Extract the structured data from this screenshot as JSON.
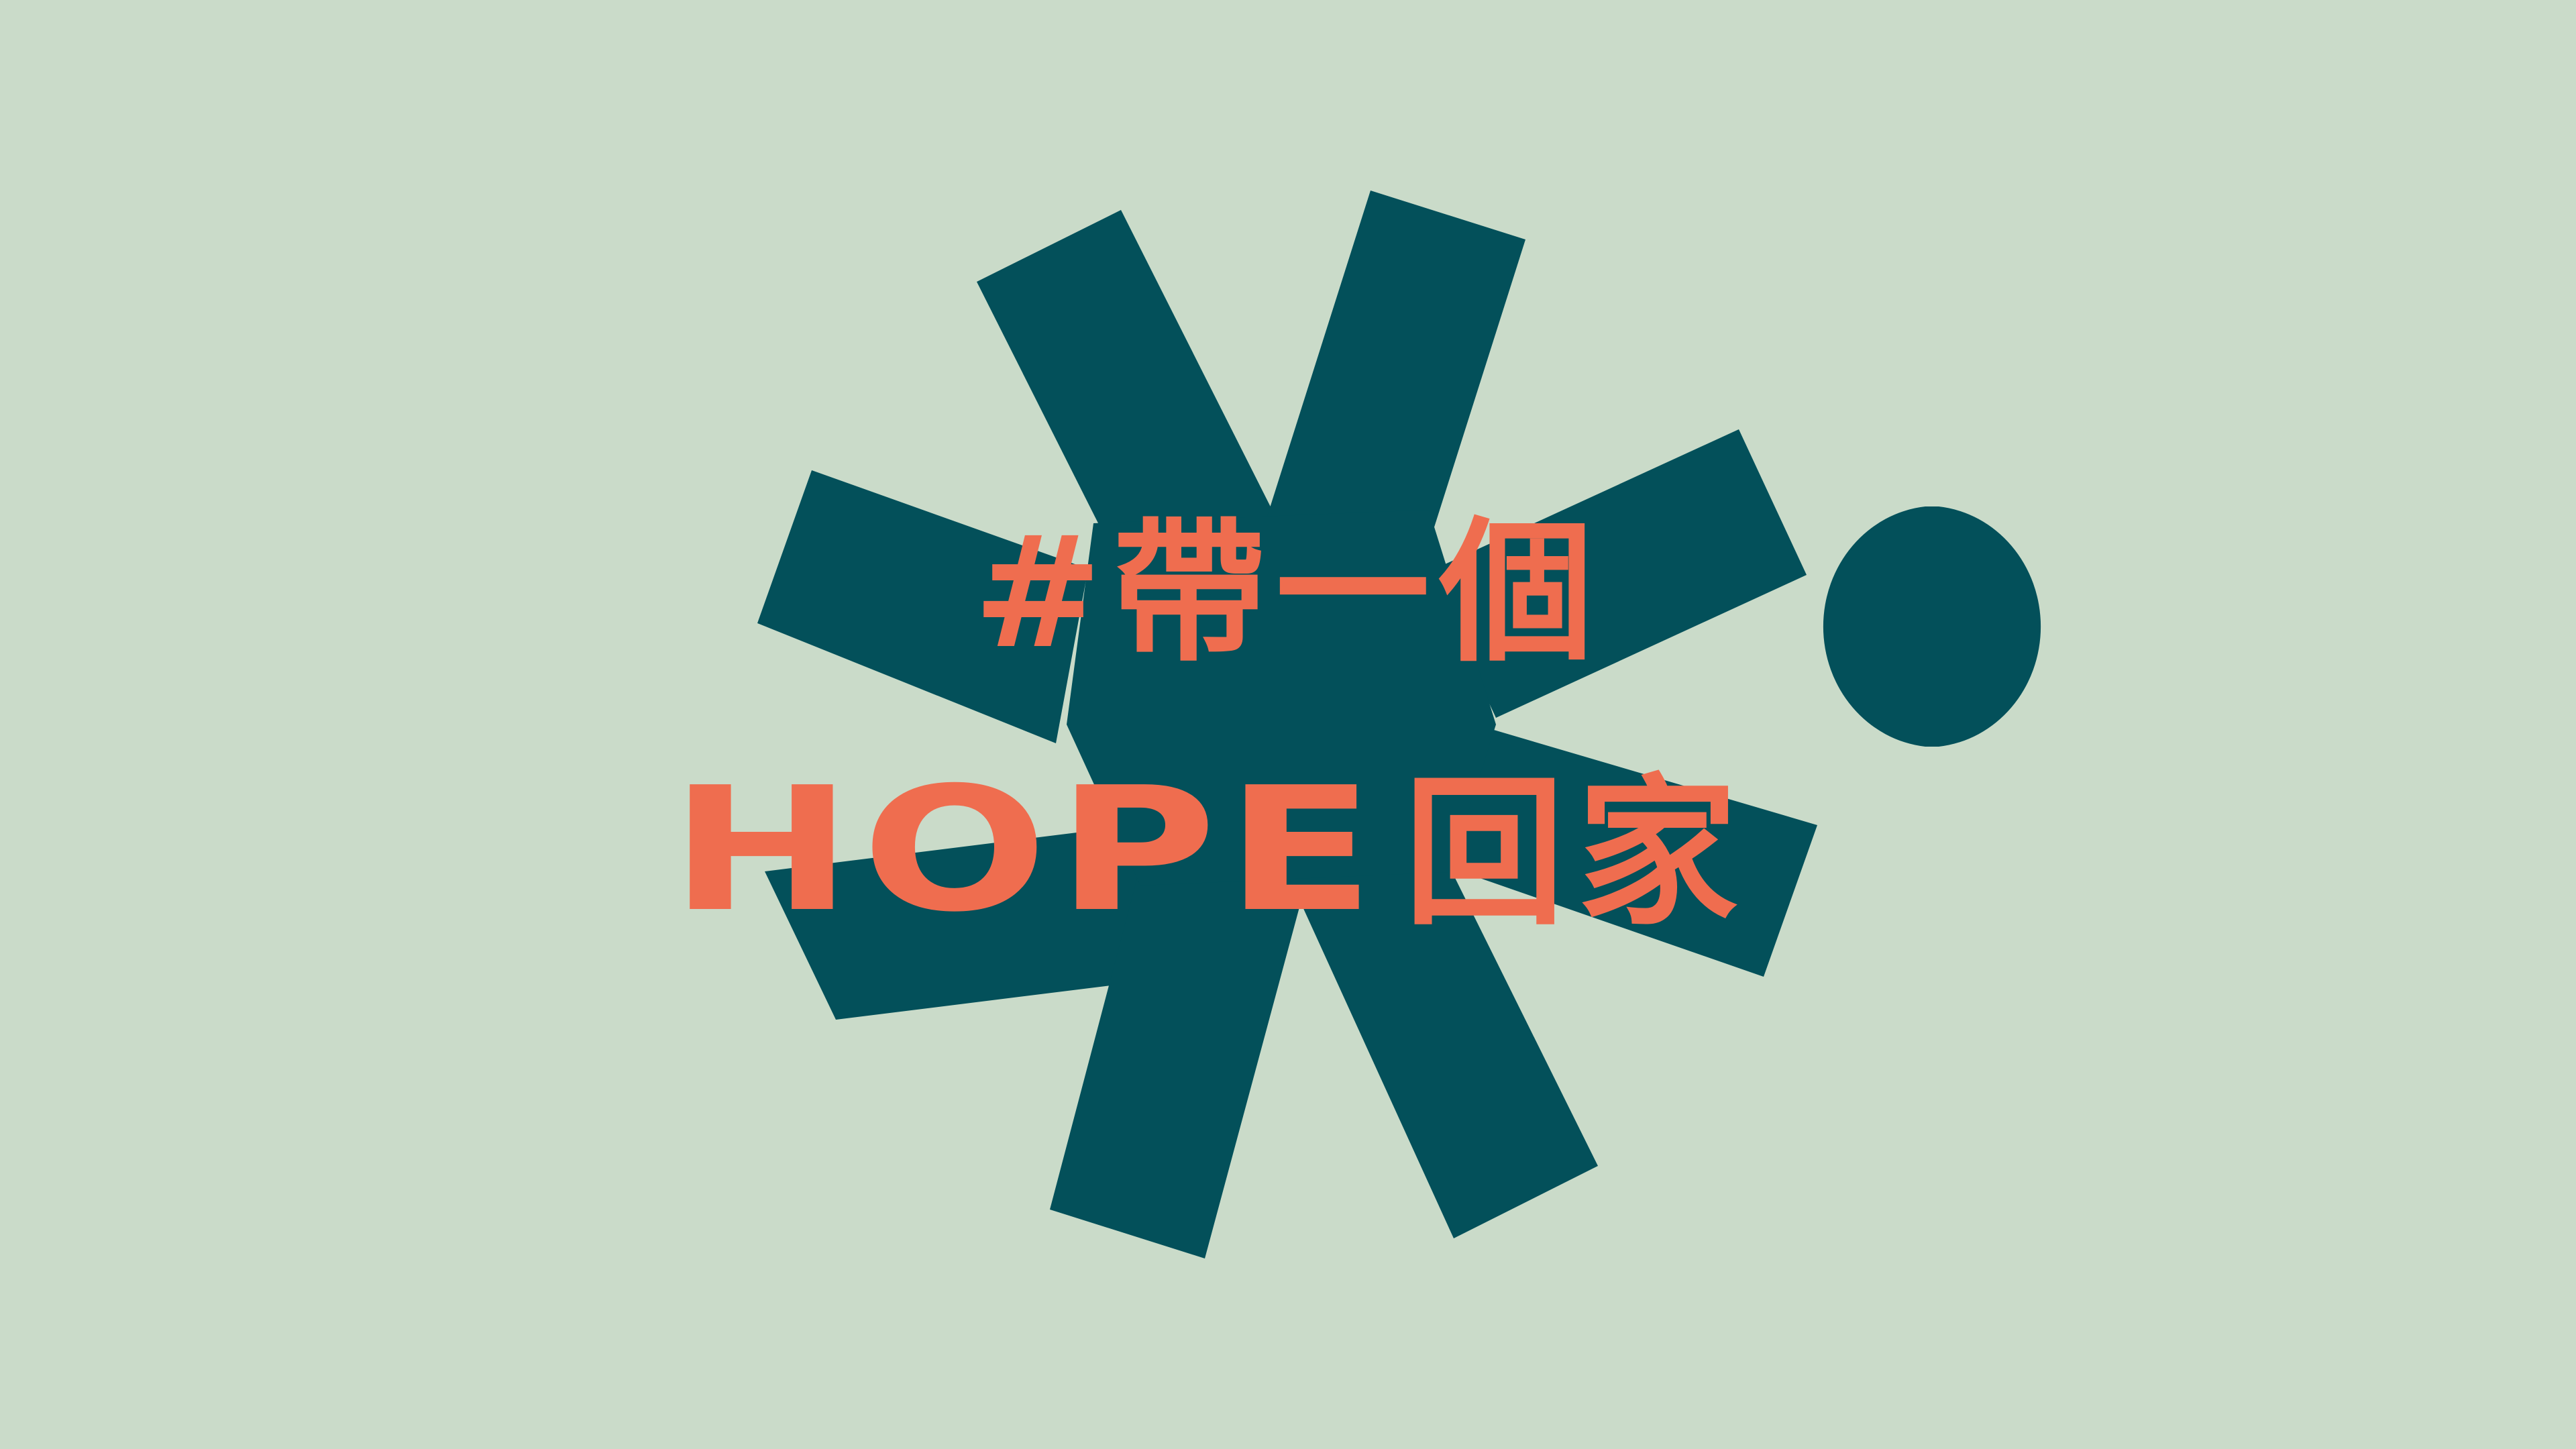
{
  "artwork": {
    "headline_line1": "#帶一個",
    "headline_hope": "HOPE",
    "headline_tail": "回家"
  },
  "colors": {
    "background": "#cadbc9",
    "asterisk": "#03505a",
    "text": "#ef6d4f"
  },
  "shapes": [
    "asterisk-shape",
    "period-dot"
  ]
}
